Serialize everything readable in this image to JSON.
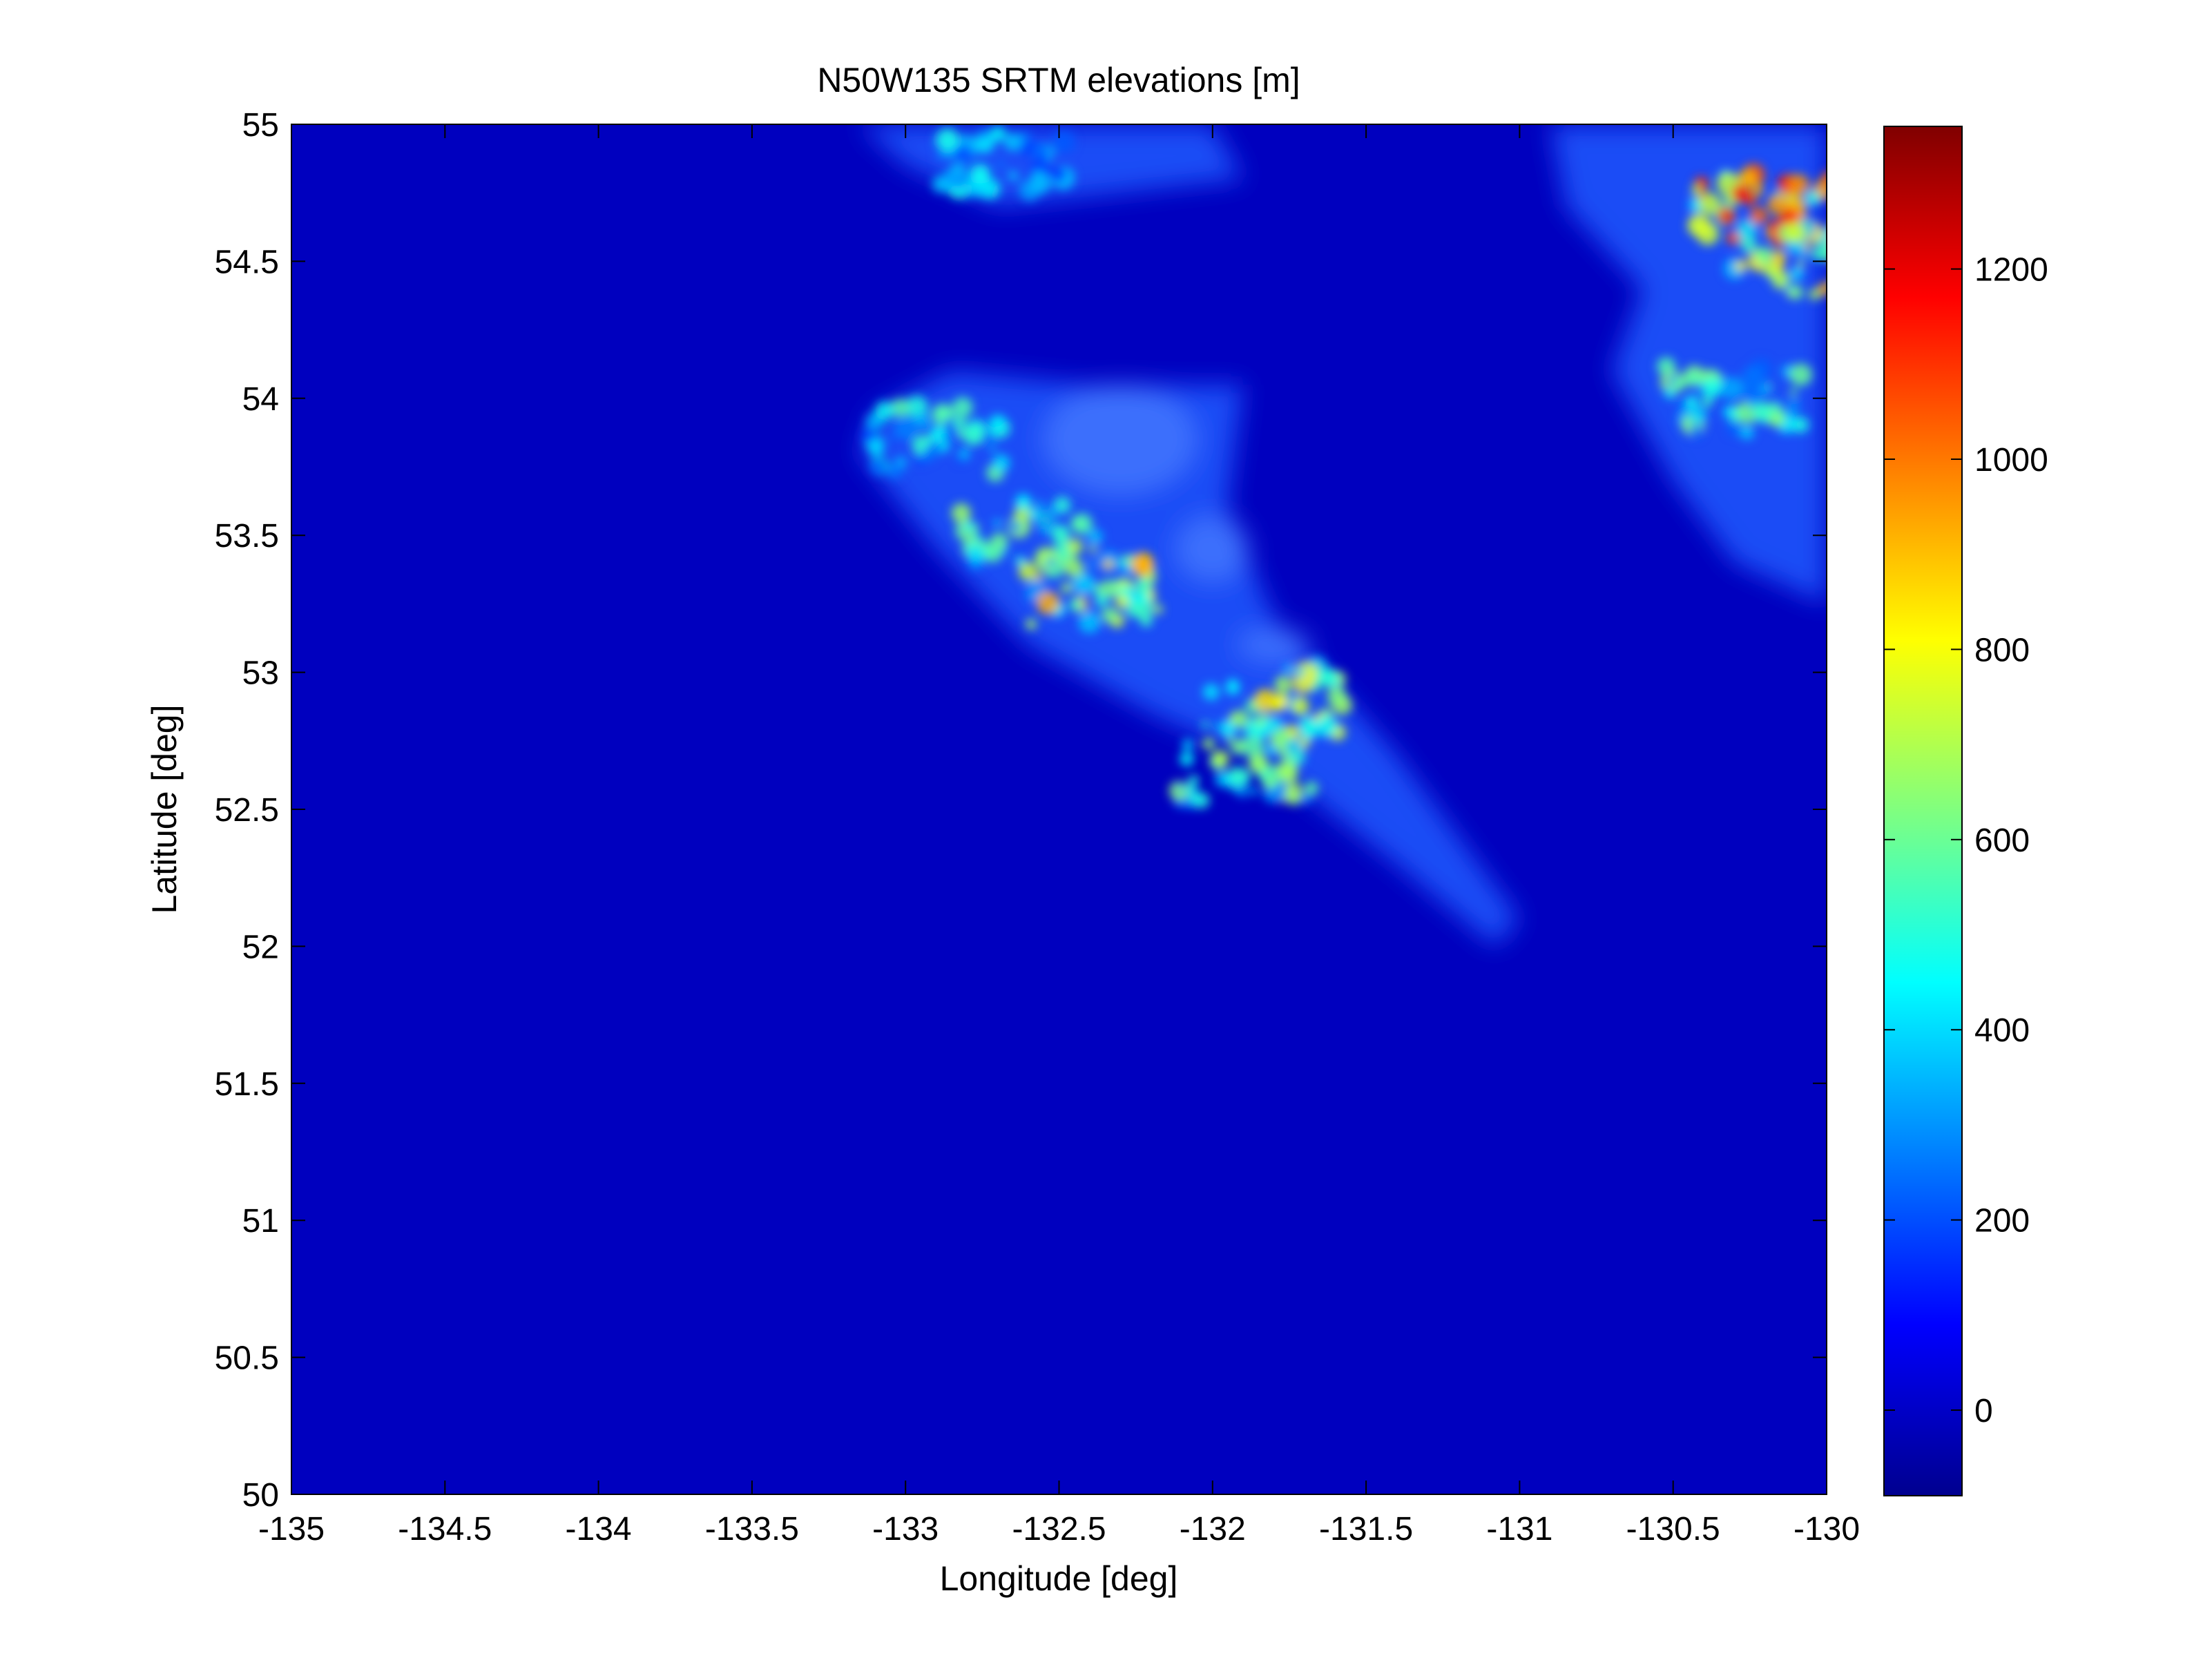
{
  "chart_data": {
    "type": "heatmap",
    "title": "N50W135 SRTM elevations [m]",
    "xlabel": "Longitude [deg]",
    "ylabel": "Latitude [deg]",
    "xlim": [
      -135,
      -130
    ],
    "ylim": [
      50,
      55
    ],
    "x_ticks": [
      -135,
      -134.5,
      -134,
      -133.5,
      -133,
      -132.5,
      -132,
      -131.5,
      -131,
      -130.5,
      -130
    ],
    "x_tick_labels": [
      "-135",
      "-134.5",
      "-134",
      "-133.5",
      "-133",
      "-132.5",
      "-132",
      "-131.5",
      "-131",
      "-130.5",
      "-130"
    ],
    "y_ticks": [
      50,
      50.5,
      51,
      51.5,
      52,
      52.5,
      53,
      53.5,
      54,
      54.5,
      55
    ],
    "y_tick_labels": [
      "50",
      "50.5",
      "51",
      "51.5",
      "52",
      "52.5",
      "53",
      "53.5",
      "54",
      "54.5",
      "55"
    ],
    "colorbar": {
      "colormap": "jet",
      "range": [
        -90,
        1350
      ],
      "ticks": [
        0,
        200,
        400,
        600,
        800,
        1000,
        1200
      ],
      "tick_labels": [
        "0",
        "200",
        "400",
        "600",
        "800",
        "1000",
        "1200"
      ]
    },
    "background_value": 0,
    "features": [
      {
        "lon": -132.4,
        "lat": 53.3,
        "value": 850
      },
      {
        "lon": -131.8,
        "lat": 52.9,
        "value": 800
      },
      {
        "lon": -131.9,
        "lat": 52.65,
        "value": 700
      },
      {
        "lon": -132.6,
        "lat": 53.5,
        "value": 650
      },
      {
        "lon": -132.9,
        "lat": 53.85,
        "value": 550
      },
      {
        "lon": -130.2,
        "lat": 54.7,
        "value": 1100
      },
      {
        "lon": -130.1,
        "lat": 54.5,
        "value": 900
      },
      {
        "lon": -130.3,
        "lat": 54.0,
        "value": 600
      },
      {
        "lon": -132.7,
        "lat": 54.85,
        "value": 450
      }
    ],
    "grid": false,
    "legend": "colorbar-right"
  }
}
